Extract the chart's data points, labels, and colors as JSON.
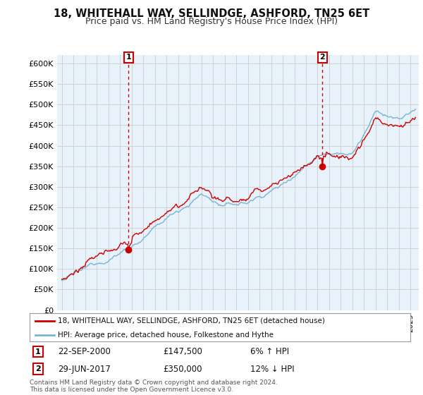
{
  "title": "18, WHITEHALL WAY, SELLINDGE, ASHFORD, TN25 6ET",
  "subtitle": "Price paid vs. HM Land Registry's House Price Index (HPI)",
  "ylim": [
    0,
    620000
  ],
  "yticks": [
    0,
    50000,
    100000,
    150000,
    200000,
    250000,
    300000,
    350000,
    400000,
    450000,
    500000,
    550000,
    600000
  ],
  "ytick_labels": [
    "£0",
    "£50K",
    "£100K",
    "£150K",
    "£200K",
    "£250K",
    "£300K",
    "£350K",
    "£400K",
    "£450K",
    "£500K",
    "£550K",
    "£600K"
  ],
  "hpi_color": "#7ab3d4",
  "price_color": "#cc0000",
  "chart_bg": "#e8f2fa",
  "marker1_value": 147500,
  "marker1_year": 2000.75,
  "marker2_value": 350000,
  "marker2_year": 2017.42,
  "legend_line1": "18, WHITEHALL WAY, SELLINDGE, ASHFORD, TN25 6ET (detached house)",
  "legend_line2": "HPI: Average price, detached house, Folkestone and Hythe",
  "marker1_date": "22-SEP-2000",
  "marker1_pct": "6% ↑ HPI",
  "marker2_date": "29-JUN-2017",
  "marker2_pct": "12% ↓ HPI",
  "footnote": "Contains HM Land Registry data © Crown copyright and database right 2024.\nThis data is licensed under the Open Government Licence v3.0.",
  "bg_color": "#ffffff",
  "grid_color": "#cccccc"
}
